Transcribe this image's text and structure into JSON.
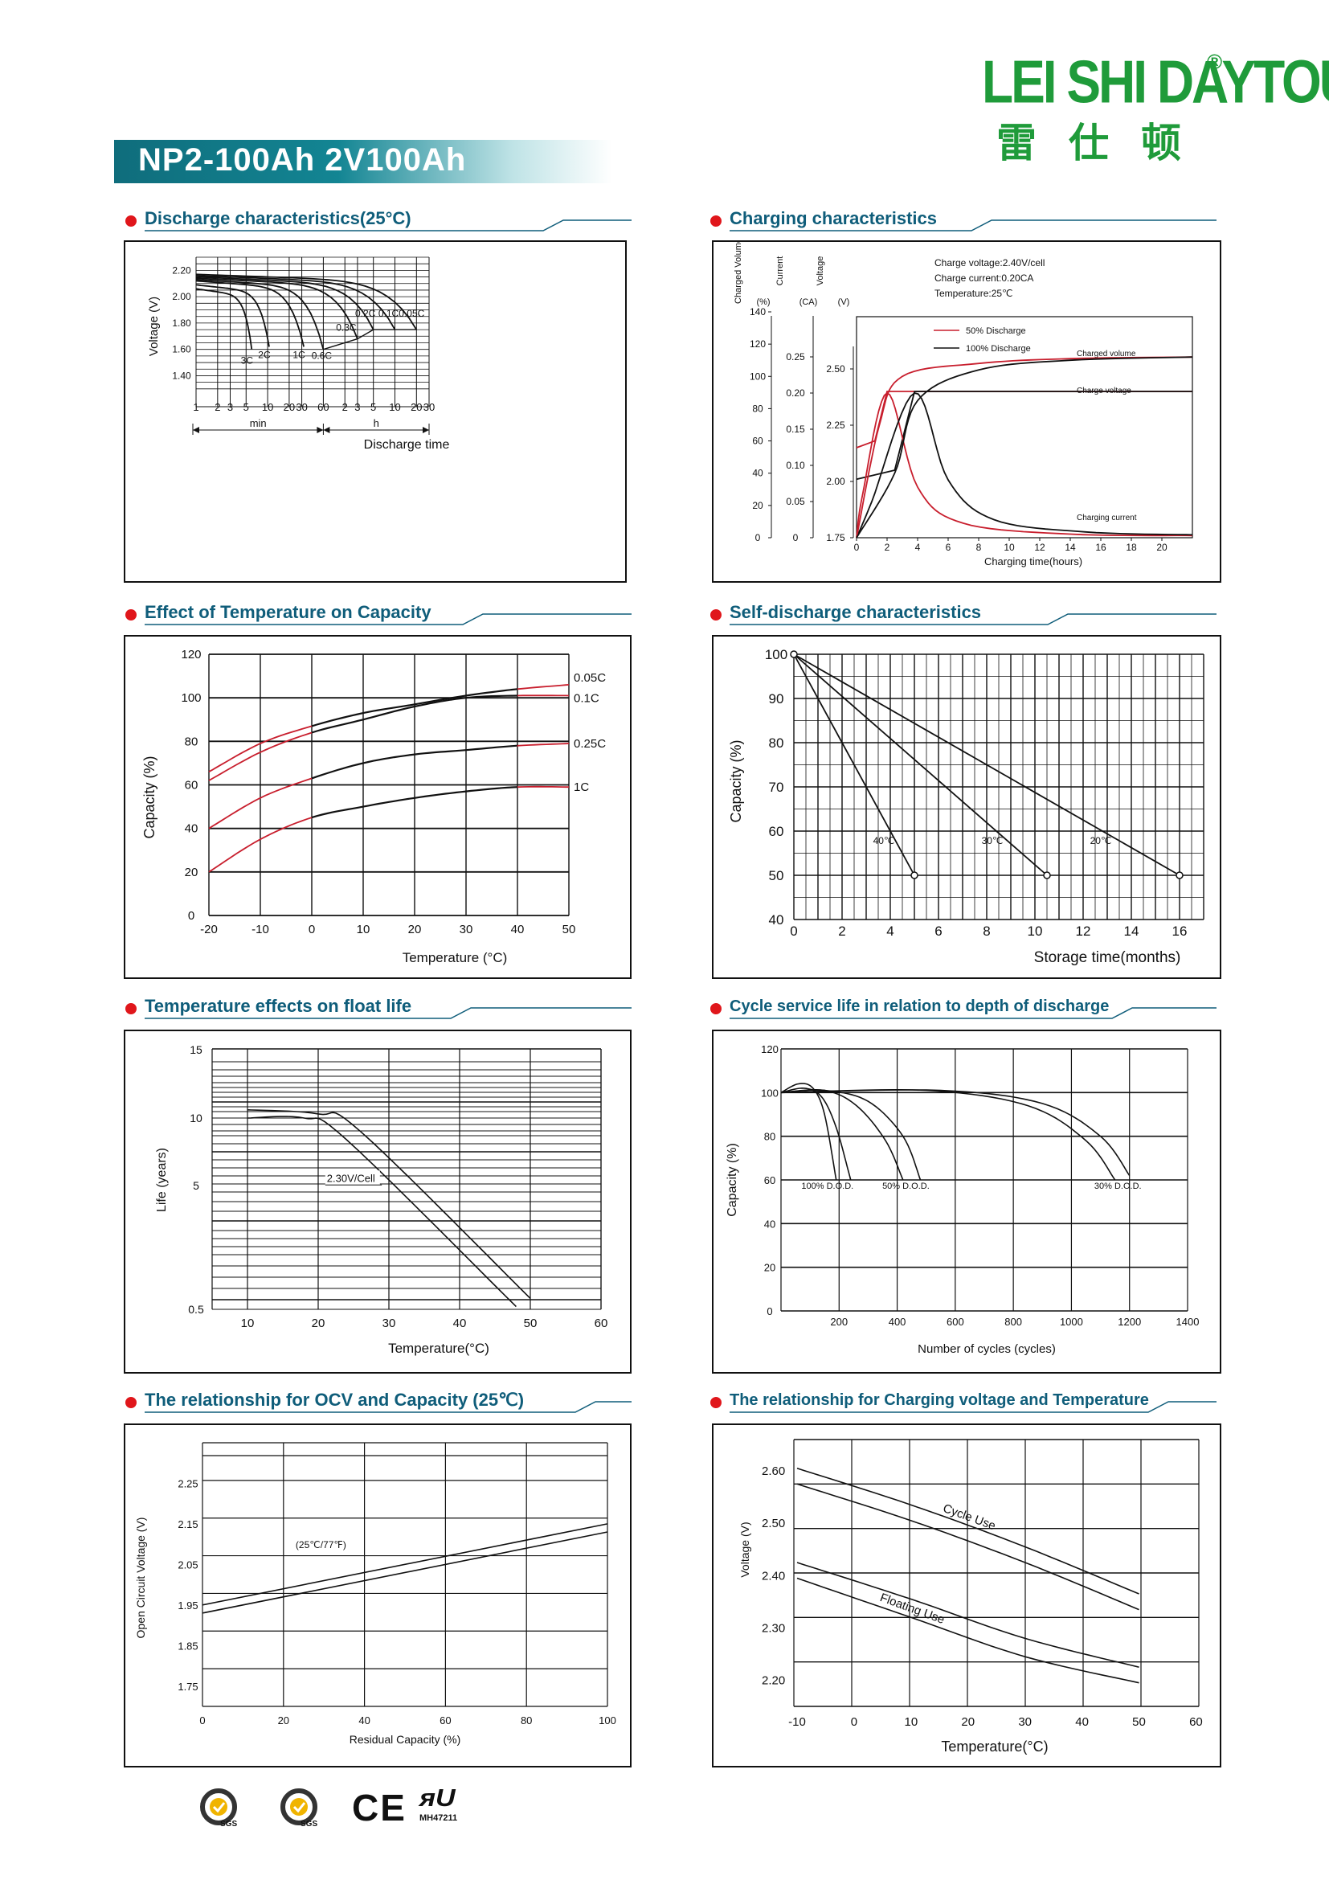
{
  "header": {
    "model": "NP2-100Ah 2V100Ah",
    "logo_text": "LEI SHI DAYTOU",
    "logo_registered": "®",
    "logo_chinese": "雷仕顿"
  },
  "colors": {
    "accent": "#0f6d7c",
    "bullet": "#e0161b",
    "brand": "#1f9b3a",
    "series_red": "#c81e2d"
  },
  "sections": {
    "discharge": "Discharge characteristics(25°C)",
    "charging": "Charging characteristics",
    "temp_capacity": "Effect of Temperature on Capacity",
    "self_discharge": "Self-discharge characteristics",
    "float_life": "Temperature effects on float life",
    "cycle_life": "Cycle service life in relation to depth of discharge",
    "ocv": "The relationship  for OCV and Capacity (25℃)",
    "charge_voltage": "The relationship for Charging voltage and Temperature"
  },
  "chart_data": [
    {
      "id": "discharge",
      "type": "line",
      "ylabel": "Voltage (V)",
      "xlabel": "Discharge time",
      "y_ticks": [
        "2.20",
        "2.00",
        "1.80",
        "1.60",
        "1.40"
      ],
      "x_ticks": [
        "1",
        "2",
        "3",
        "5",
        "10",
        "20",
        "30",
        "60",
        "2",
        "3",
        "5",
        "10",
        "20",
        "30"
      ],
      "x_units": [
        "min",
        "h"
      ],
      "ylim": [
        1.25,
        2.3
      ],
      "series": [
        {
          "name": "3C",
          "end_min": 6,
          "end_v": 1.6
        },
        {
          "name": "2C",
          "end_min": 10.5,
          "end_v": 1.62
        },
        {
          "name": "1C",
          "end_min": 32,
          "end_v": 1.62
        },
        {
          "name": "0.6C",
          "end_min": 60,
          "end_v": 1.6
        },
        {
          "name": "0.3C",
          "end_min": 180,
          "end_v": 1.68
        },
        {
          "name": "0.2C",
          "end_min": 300,
          "end_v": 1.75
        },
        {
          "name": "0.1C",
          "end_min": 600,
          "end_v": 1.75
        },
        {
          "name": "0.05C",
          "end_min": 1200,
          "end_v": 1.75
        }
      ]
    },
    {
      "id": "charging",
      "type": "line",
      "xlabel": "Charging time(hours)",
      "axis_titles": [
        "Charged Volume",
        "Current",
        "Voltage"
      ],
      "axis_units": [
        "(%)",
        "(CA)",
        "(V)"
      ],
      "charged_ticks": [
        "140",
        "120",
        "100",
        "80",
        "60",
        "40",
        "20",
        "0"
      ],
      "current_ticks": [
        "0.25",
        "0.20",
        "0.15",
        "0.10",
        "0.05",
        "0"
      ],
      "voltage_ticks": [
        "2.50",
        "2.25",
        "2.00",
        "1.75"
      ],
      "x_ticks": [
        "0",
        "2",
        "4",
        "6",
        "8",
        "10",
        "12",
        "14",
        "16",
        "18",
        "20"
      ],
      "notes": [
        "Charge voltage:2.40V/cell",
        "Charge current:0.20CA",
        "Temperature:25℃"
      ],
      "legend": [
        "50% Discharge",
        "100% Discharge"
      ],
      "curve_labels": [
        "Charged volume",
        "Charge voltage",
        "Charging current"
      ]
    },
    {
      "id": "temp_capacity",
      "type": "line",
      "ylabel": "Capacity (%)",
      "xlabel": "Temperature (°C)",
      "y_ticks": [
        "120",
        "100",
        "80",
        "60",
        "40",
        "20",
        "0"
      ],
      "x_ticks": [
        "-20",
        "-10",
        "0",
        "10",
        "20",
        "30",
        "40",
        "50"
      ],
      "xlim": [
        -20,
        50
      ],
      "ylim": [
        0,
        120
      ],
      "series": [
        {
          "name": "0.05C",
          "points": [
            [
              -20,
              66
            ],
            [
              -10,
              79
            ],
            [
              0,
              87
            ],
            [
              10,
              93
            ],
            [
              20,
              97
            ],
            [
              30,
              101
            ],
            [
              40,
              104
            ],
            [
              50,
              106
            ]
          ]
        },
        {
          "name": "0.1C",
          "points": [
            [
              -20,
              62
            ],
            [
              -10,
              75
            ],
            [
              0,
              84
            ],
            [
              10,
              90
            ],
            [
              20,
              96
            ],
            [
              30,
              100
            ],
            [
              40,
              101
            ],
            [
              50,
              101
            ]
          ]
        },
        {
          "name": "0.25C",
          "points": [
            [
              -20,
              40
            ],
            [
              -10,
              54
            ],
            [
              0,
              63
            ],
            [
              10,
              70
            ],
            [
              20,
              74
            ],
            [
              30,
              76
            ],
            [
              40,
              78
            ],
            [
              50,
              79
            ]
          ]
        },
        {
          "name": "1C",
          "points": [
            [
              -20,
              20
            ],
            [
              -10,
              35
            ],
            [
              0,
              45
            ],
            [
              10,
              50
            ],
            [
              20,
              54
            ],
            [
              30,
              57
            ],
            [
              40,
              59
            ],
            [
              50,
              59
            ]
          ]
        }
      ]
    },
    {
      "id": "self_discharge",
      "type": "line",
      "ylabel": "Capacity (%)",
      "xlabel": "Storage time(months)",
      "y_ticks": [
        "100",
        "90",
        "80",
        "70",
        "60",
        "50",
        "40"
      ],
      "x_ticks": [
        "0",
        "2",
        "4",
        "6",
        "8",
        "10",
        "12",
        "14",
        "16"
      ],
      "xlim": [
        0,
        17
      ],
      "ylim": [
        40,
        100
      ],
      "series": [
        {
          "name": "40℃",
          "points": [
            [
              0,
              100
            ],
            [
              5,
              50
            ]
          ]
        },
        {
          "name": "30℃",
          "points": [
            [
              0,
              100
            ],
            [
              10.5,
              50
            ]
          ]
        },
        {
          "name": "20℃",
          "points": [
            [
              0,
              100
            ],
            [
              16,
              50
            ]
          ]
        }
      ]
    },
    {
      "id": "float_life",
      "type": "line",
      "ylabel": "Life (years)",
      "xlabel": "Temperature(°C)",
      "y_ticks": [
        "15",
        "10",
        "5",
        "0.5"
      ],
      "x_ticks": [
        "10",
        "20",
        "30",
        "40",
        "50",
        "60"
      ],
      "annotation": "2.30V/Cell",
      "series": [
        {
          "name": "2.30V/Cell",
          "points": [
            [
              10,
              10.6
            ],
            [
              20,
              10.2
            ],
            [
              25,
              9
            ],
            [
              50,
              1.5
            ]
          ]
        }
      ]
    },
    {
      "id": "cycle_life",
      "type": "line",
      "ylabel": "Capacity (%)",
      "xlabel": "Number of cycles (cycles)",
      "y_ticks": [
        "120",
        "100",
        "80",
        "60",
        "40",
        "20",
        "0"
      ],
      "x_ticks": [
        "200",
        "400",
        "600",
        "800",
        "1000",
        "1200",
        "1400"
      ],
      "xlim": [
        0,
        1400
      ],
      "ylim": [
        0,
        120
      ],
      "series": [
        {
          "name": "100% D.O.D.",
          "points": [
            [
              0,
              100
            ],
            [
              100,
              102
            ],
            [
              170,
              96
            ],
            [
              210,
              60
            ]
          ]
        },
        {
          "name": "50% D.O.D.",
          "points": [
            [
              0,
              100
            ],
            [
              200,
              101
            ],
            [
              320,
              95
            ],
            [
              480,
              60
            ]
          ]
        },
        {
          "name": "30% D.O.D.",
          "points": [
            [
              0,
              100
            ],
            [
              500,
              101
            ],
            [
              900,
              92
            ],
            [
              1180,
              60
            ]
          ]
        }
      ]
    },
    {
      "id": "ocv",
      "type": "line",
      "ylabel": "Open Circuit Voltage (V)",
      "xlabel": "Residual Capacity (%)",
      "y_ticks": [
        "2.25",
        "2.15",
        "2.05",
        "1.95",
        "1.85",
        "1.75"
      ],
      "x_ticks": [
        "0",
        "20",
        "40",
        "60",
        "80",
        "100"
      ],
      "xlim": [
        0,
        100
      ],
      "ylim": [
        1.7,
        2.35
      ],
      "annotation": "(25℃/77℉)",
      "series": [
        {
          "name": "OCV",
          "points": [
            [
              0,
              1.94
            ],
            [
              100,
              2.14
            ]
          ]
        }
      ]
    },
    {
      "id": "charge_voltage",
      "type": "line",
      "ylabel": "Voltage (V)",
      "xlabel": "Temperature(°C)",
      "y_ticks": [
        "2.60",
        "2.50",
        "2.40",
        "2.30",
        "2.20"
      ],
      "x_ticks": [
        "-10",
        "0",
        "10",
        "20",
        "30",
        "40",
        "50",
        "60"
      ],
      "xlim": [
        -10,
        60
      ],
      "ylim": [
        2.15,
        2.66
      ],
      "series": [
        {
          "name": "Cycle Use",
          "points": [
            [
              -10,
              2.58
            ],
            [
              10,
              2.52
            ],
            [
              30,
              2.44
            ],
            [
              50,
              2.36
            ]
          ]
        },
        {
          "name": "Floating Use",
          "points": [
            [
              -10,
              2.41
            ],
            [
              10,
              2.34
            ],
            [
              30,
              2.26
            ],
            [
              50,
              2.21
            ]
          ]
        }
      ]
    }
  ],
  "footer": {
    "cert_sgs": "SGS",
    "cert_ce": "CE",
    "cert_ul_code": "MH47211"
  }
}
